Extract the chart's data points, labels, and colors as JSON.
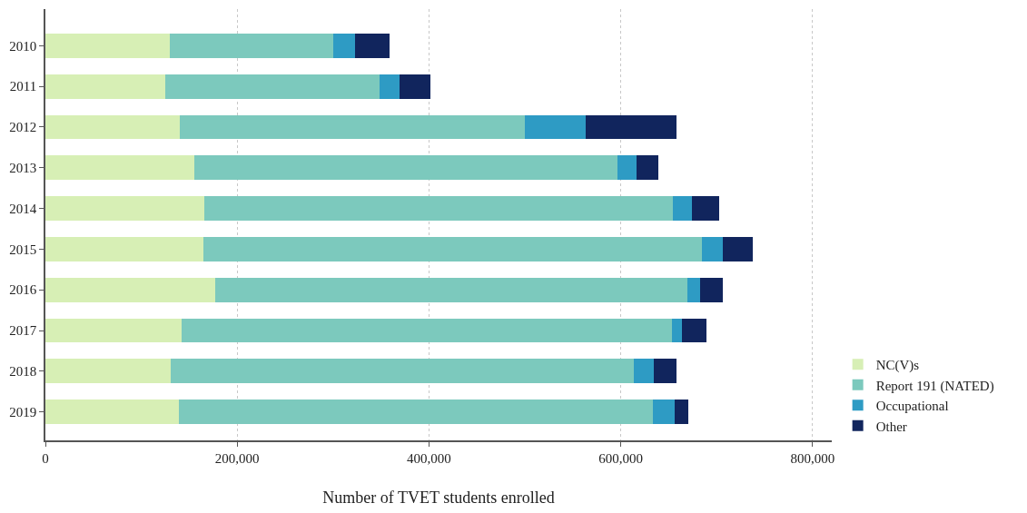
{
  "chart_data": {
    "type": "bar",
    "orientation": "horizontal",
    "stacked": true,
    "xlabel": "Number of TVET students enrolled",
    "categories": [
      "2010",
      "2011",
      "2012",
      "2013",
      "2014",
      "2015",
      "2016",
      "2017",
      "2018",
      "2019"
    ],
    "series": [
      {
        "name": "NC(V)s",
        "color": "#d7efb5",
        "values": [
          130000,
          125000,
          140000,
          155000,
          166000,
          165000,
          177000,
          142000,
          131000,
          139000
        ]
      },
      {
        "name": "Report 191 (NATED)",
        "color": "#7cc9bd",
        "values": [
          170000,
          223000,
          360000,
          442000,
          488000,
          520000,
          492000,
          511000,
          483000,
          494000
        ]
      },
      {
        "name": "Occupational",
        "color": "#2e9bc4",
        "values": [
          23000,
          21000,
          63000,
          19000,
          20000,
          21000,
          14000,
          11000,
          20000,
          23000
        ]
      },
      {
        "name": "Other",
        "color": "#11255d",
        "values": [
          36000,
          32000,
          95000,
          23000,
          29000,
          32000,
          23000,
          25000,
          24000,
          14000
        ]
      }
    ],
    "xlim": [
      0,
      820000
    ],
    "xticks": [
      0,
      {
        "value": 200000,
        "label": "200,000"
      },
      {
        "value": 400000,
        "label": "400,000"
      },
      {
        "value": 600000,
        "label": "600,000"
      },
      {
        "value": 800000,
        "label": "800,000"
      }
    ],
    "grid": "x",
    "legend": "bottom right"
  }
}
